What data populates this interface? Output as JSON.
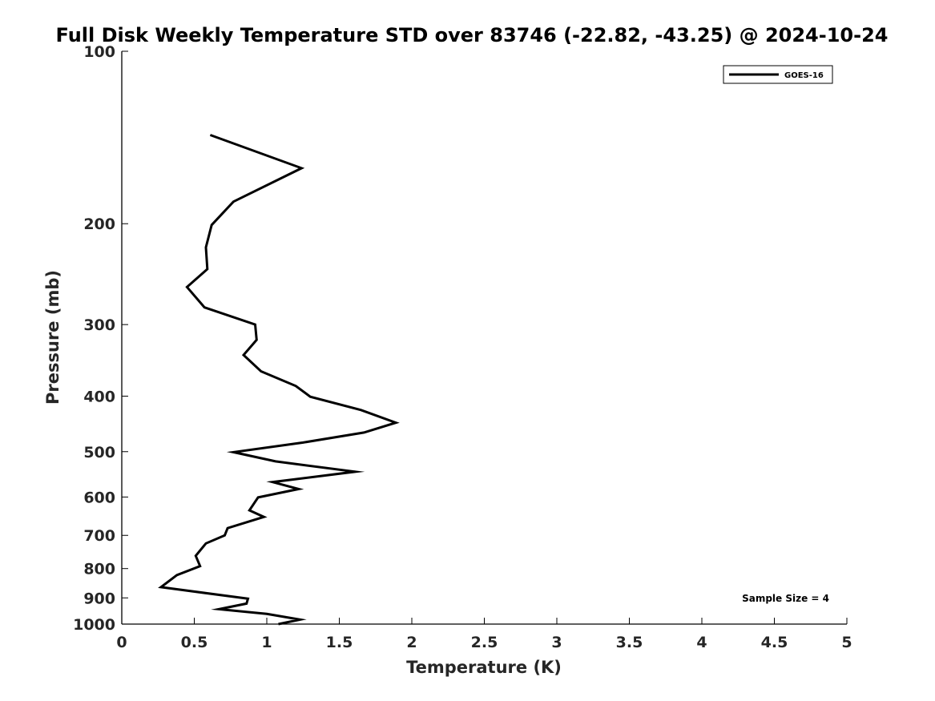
{
  "chart_data": {
    "type": "line",
    "title": "Full Disk Weekly Temperature STD over 83746 (-22.82, -43.25) @ 2024-10-24",
    "xlabel": "Temperature (K)",
    "ylabel": "Pressure (mb)",
    "xlim": [
      0,
      5
    ],
    "ylim": [
      100,
      1000
    ],
    "y_scale": "log",
    "y_inverted": true,
    "grid": false,
    "legend_position": "top-right",
    "x_ticks": [
      0,
      0.5,
      1,
      1.5,
      2,
      2.5,
      3,
      3.5,
      4,
      4.5,
      5
    ],
    "x_tick_labels": [
      "0",
      "0.5",
      "1",
      "1.5",
      "2",
      "2.5",
      "3",
      "3.5",
      "4",
      "4.5",
      "5"
    ],
    "y_ticks": [
      100,
      200,
      300,
      400,
      500,
      600,
      700,
      800,
      900,
      1000
    ],
    "y_tick_labels": [
      "100",
      "200",
      "300",
      "400",
      "500",
      "600",
      "700",
      "800",
      "900",
      "1000"
    ],
    "series": [
      {
        "name": "GOES-16",
        "color": "#000000",
        "points": [
          {
            "x": 0.61,
            "p": 140
          },
          {
            "x": 1.24,
            "p": 160
          },
          {
            "x": 0.77,
            "p": 183
          },
          {
            "x": 0.62,
            "p": 201
          },
          {
            "x": 0.58,
            "p": 220
          },
          {
            "x": 0.59,
            "p": 240
          },
          {
            "x": 0.45,
            "p": 258
          },
          {
            "x": 0.57,
            "p": 280
          },
          {
            "x": 0.92,
            "p": 300
          },
          {
            "x": 0.93,
            "p": 319
          },
          {
            "x": 0.84,
            "p": 339
          },
          {
            "x": 0.96,
            "p": 362
          },
          {
            "x": 1.2,
            "p": 384
          },
          {
            "x": 1.3,
            "p": 401
          },
          {
            "x": 1.65,
            "p": 423
          },
          {
            "x": 1.89,
            "p": 445
          },
          {
            "x": 1.67,
            "p": 463
          },
          {
            "x": 1.25,
            "p": 482
          },
          {
            "x": 0.77,
            "p": 501
          },
          {
            "x": 1.06,
            "p": 520
          },
          {
            "x": 1.61,
            "p": 542
          },
          {
            "x": 1.04,
            "p": 565
          },
          {
            "x": 1.22,
            "p": 581
          },
          {
            "x": 0.94,
            "p": 601
          },
          {
            "x": 0.88,
            "p": 633
          },
          {
            "x": 0.98,
            "p": 650
          },
          {
            "x": 0.73,
            "p": 680
          },
          {
            "x": 0.71,
            "p": 700
          },
          {
            "x": 0.58,
            "p": 723
          },
          {
            "x": 0.51,
            "p": 760
          },
          {
            "x": 0.54,
            "p": 792
          },
          {
            "x": 0.38,
            "p": 821
          },
          {
            "x": 0.27,
            "p": 862
          },
          {
            "x": 0.87,
            "p": 903
          },
          {
            "x": 0.86,
            "p": 921
          },
          {
            "x": 0.67,
            "p": 942
          },
          {
            "x": 1.0,
            "p": 960
          },
          {
            "x": 1.23,
            "p": 982
          },
          {
            "x": 1.08,
            "p": 1000
          }
        ]
      }
    ],
    "annotations": [
      {
        "text": "Sample Size = 4"
      }
    ]
  }
}
